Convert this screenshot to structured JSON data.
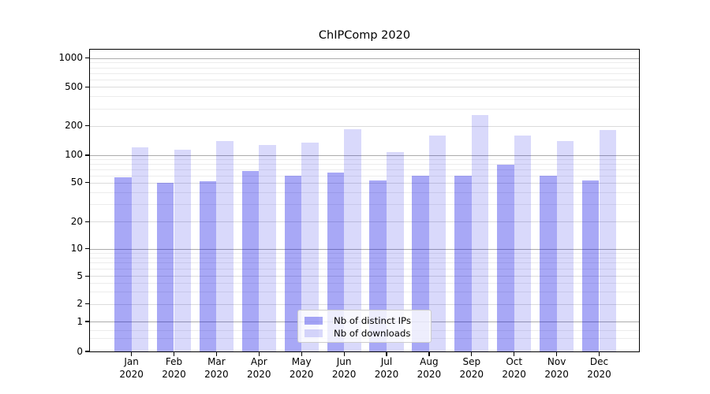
{
  "chart_data": {
    "type": "bar",
    "title": "ChIPComp 2020",
    "categories": [
      "Jan",
      "Feb",
      "Mar",
      "Apr",
      "May",
      "Jun",
      "Jul",
      "Aug",
      "Sep",
      "Oct",
      "Nov",
      "Dec"
    ],
    "x_tick_second_line": "2020",
    "series": [
      {
        "name": "Nb of distinct IPs",
        "color": "#0000e6",
        "alpha": 0.34,
        "values": [
          57,
          50,
          52,
          67,
          60,
          65,
          53,
          60,
          60,
          78,
          59,
          53
        ]
      },
      {
        "name": "Nb of downloads",
        "color": "#0000e6",
        "alpha": 0.15,
        "values": [
          119,
          113,
          140,
          128,
          135,
          186,
          108,
          158,
          260,
          160,
          140,
          180
        ]
      }
    ],
    "y_ticks": [
      0,
      1,
      2,
      5,
      10,
      20,
      50,
      100,
      200,
      500,
      1000
    ],
    "y_scale": "symlog",
    "ylim": [
      0,
      1225
    ],
    "xlabel": "",
    "ylabel": "",
    "grid": true,
    "legend_position": "lower center"
  }
}
